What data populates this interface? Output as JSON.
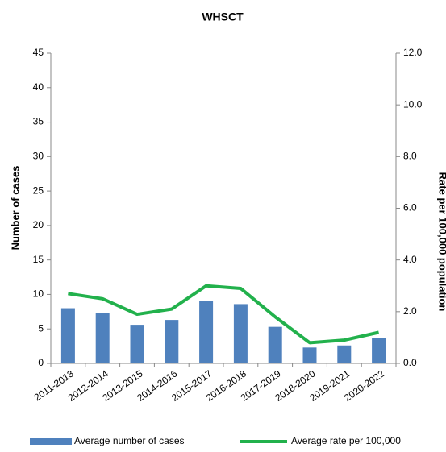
{
  "chart_data": {
    "type": "bar_line",
    "title": "WHSCT",
    "categories": [
      "2011-2013",
      "2012-2014",
      "2013-2015",
      "2014-2016",
      "2015-2017",
      "2016-2018",
      "2017-2019",
      "2018-2020",
      "2019-2021",
      "2020-2022"
    ],
    "series": [
      {
        "name": "Average number of cases",
        "type": "bar",
        "color": "#4f81bd",
        "values": [
          8.0,
          7.3,
          5.6,
          6.3,
          9.0,
          8.6,
          5.3,
          2.3,
          2.6,
          3.7
        ]
      },
      {
        "name": "Average rate per 100,000",
        "type": "line",
        "axis": "y2",
        "color": "#22b14c",
        "values": [
          2.7,
          2.5,
          1.9,
          2.1,
          3.0,
          2.9,
          1.8,
          0.8,
          0.9,
          1.2
        ]
      }
    ],
    "ylabel": "Number of cases",
    "y2label": "Rate per 100,000 population",
    "ylim": [
      0,
      45
    ],
    "yticks": [
      0,
      5,
      10,
      15,
      20,
      25,
      30,
      35,
      40,
      45
    ],
    "y2lim": [
      0,
      12
    ],
    "y2ticks": [
      {
        "value": 0,
        "label": "0.0"
      },
      {
        "value": 2,
        "label": "2.0"
      },
      {
        "value": 4,
        "label": "4.0"
      },
      {
        "value": 6,
        "label": "6.0"
      },
      {
        "value": 8,
        "label": "8.0"
      },
      {
        "value": 10,
        "label": "10.0"
      },
      {
        "value": 12,
        "label": "12.0"
      }
    ]
  }
}
